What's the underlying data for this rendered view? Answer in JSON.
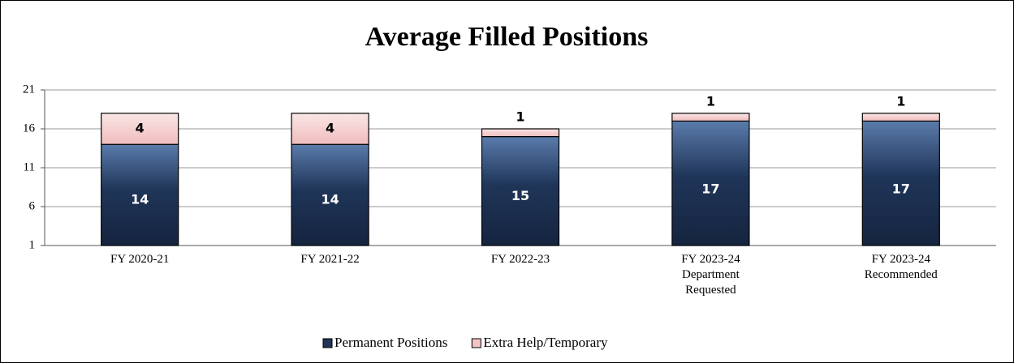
{
  "chart_data": {
    "type": "stacked_bar",
    "title": "Average Filled Positions",
    "categories": [
      "FY 2020-21",
      "FY 2021-22",
      "FY 2022-23",
      "FY 2023-24\nDepartment\nRequested",
      "FY 2023-24\nRecommended"
    ],
    "series": [
      {
        "name": "Permanent Positions",
        "color": "#1f3558",
        "values": [
          14,
          14,
          15,
          17,
          17
        ]
      },
      {
        "name": "Extra Help/Temporary",
        "color": "#f2c4c4",
        "values": [
          4,
          4,
          1,
          1,
          1
        ]
      }
    ],
    "ylim": [
      1,
      21
    ],
    "yticks": [
      1,
      6,
      11,
      16,
      21
    ],
    "grid": true,
    "legend": "bottom"
  }
}
